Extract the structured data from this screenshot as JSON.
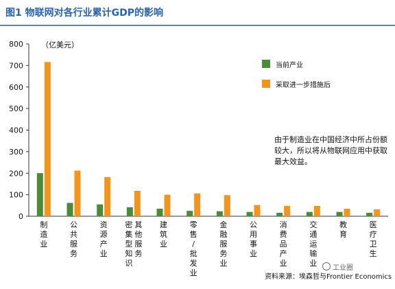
{
  "header": {
    "title": "图1   物联网对各行业累计GDP的影响"
  },
  "chart_data": {
    "type": "bar",
    "unit_label": "（亿美元）",
    "categories": [
      "制造业",
      "公共服务",
      "资源产业",
      "密集型知识服务其他",
      "建筑业",
      "零售/批发业",
      "金融服务业",
      "公用事业",
      "消费品产业",
      "交通运输业",
      "教育",
      "医疗卫生"
    ],
    "category_lines": [
      [
        "制",
        "造",
        "业"
      ],
      [
        "公",
        "共",
        "服",
        "务"
      ],
      [
        "资",
        "源",
        "产",
        "业"
      ],
      [
        "密集",
        "集型",
        "型知",
        "知识",
        "识服",
        "服务"
      ],
      [
        "建",
        "筑",
        "业"
      ],
      [
        "零",
        "售",
        "/",
        "批",
        "发",
        "业"
      ],
      [
        "金",
        "融",
        "服",
        "务",
        "业"
      ],
      [
        "公",
        "用",
        "事",
        "业"
      ],
      [
        "消",
        "费",
        "品",
        "产",
        "业"
      ],
      [
        "交",
        "通",
        "运",
        "输",
        "业"
      ],
      [
        "教",
        "育"
      ],
      [
        "医",
        "疗",
        "卫",
        "生"
      ]
    ],
    "series": [
      {
        "name": "当前产业",
        "color": "#4a8a3a",
        "values": [
          200,
          62,
          55,
          42,
          35,
          25,
          23,
          20,
          16,
          20,
          20,
          16
        ]
      },
      {
        "name": "采取进一步措施后",
        "color": "#f2951f",
        "values": [
          716,
          212,
          182,
          118,
          100,
          106,
          98,
          52,
          48,
          48,
          35,
          32
        ]
      }
    ],
    "yticks": [
      0,
      100,
      200,
      300,
      400,
      500,
      600,
      700,
      800
    ],
    "ylim": [
      0,
      800
    ],
    "grid": false
  },
  "note": "由于制造业在中国经济中所占份额较大，所以将从物联网应用中获取最大效益。",
  "source": "资料来源：埃森哲与Frontier Economics",
  "watermark": "工业圈"
}
